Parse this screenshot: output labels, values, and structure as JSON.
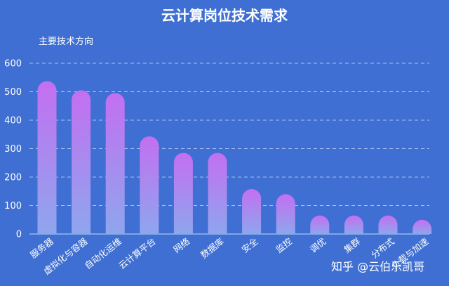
{
  "chart_data": {
    "type": "bar",
    "title": "云计算岗位技术需求",
    "ylabel": "主要技术方向",
    "xlabel": "",
    "ylim": [
      0,
      600
    ],
    "yticks": [
      0,
      100,
      200,
      300,
      400,
      500,
      600
    ],
    "grid": true,
    "categories": [
      "服务器",
      "虚拟化与容器",
      "自动化运维",
      "云计算平台",
      "网络",
      "数据库",
      "安全",
      "监控",
      "调优",
      "集群",
      "分布式",
      "负载与加速"
    ],
    "values": [
      537,
      505,
      495,
      343,
      285,
      285,
      158,
      140,
      65,
      65,
      65,
      50
    ],
    "bar_gradient": [
      "#c36ff0",
      "#8ea6ee"
    ]
  },
  "watermark": "知乎 @云伯乐凯哥"
}
